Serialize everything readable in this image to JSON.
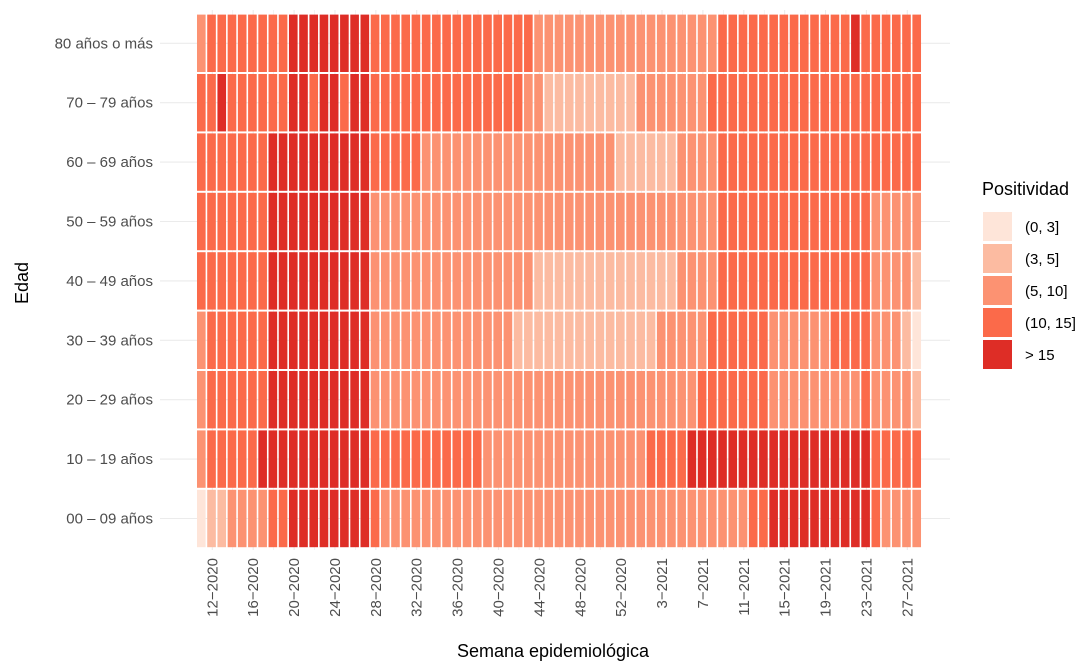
{
  "colors": {
    "bins": [
      "#fee5d9",
      "#fcbba1",
      "#fc9272",
      "#fb6a4a",
      "#de2d26"
    ],
    "grid": "#ebebeb",
    "text": "#4d4d4d",
    "title": "#000000"
  },
  "chart_data": {
    "type": "heatmap",
    "title": "",
    "xlabel": "Semana epidemiológica",
    "ylabel": "Edad",
    "legend": {
      "title": "Positividad",
      "position": "right",
      "items": [
        "(0, 3]",
        "(3, 5]",
        "(5, 10]",
        "(10, 15]",
        "> 15"
      ]
    },
    "grid": true,
    "x": [
      "11-2020",
      "12-2020",
      "13-2020",
      "14-2020",
      "15-2020",
      "16-2020",
      "17-2020",
      "18-2020",
      "19-2020",
      "20-2020",
      "21-2020",
      "22-2020",
      "23-2020",
      "24-2020",
      "25-2020",
      "26-2020",
      "27-2020",
      "28-2020",
      "29-2020",
      "30-2020",
      "31-2020",
      "32-2020",
      "33-2020",
      "34-2020",
      "35-2020",
      "36-2020",
      "37-2020",
      "38-2020",
      "39-2020",
      "40-2020",
      "41-2020",
      "42-2020",
      "43-2020",
      "44-2020",
      "45-2020",
      "46-2020",
      "47-2020",
      "48-2020",
      "49-2020",
      "50-2020",
      "51-2020",
      "52-2020",
      "53-2020",
      "1-2021",
      "2-2021",
      "3-2021",
      "4-2021",
      "5-2021",
      "6-2021",
      "7-2021",
      "8-2021",
      "9-2021",
      "10-2021",
      "11-2021",
      "12-2021",
      "13-2021",
      "14-2021",
      "15-2021",
      "16-2021",
      "17-2021",
      "18-2021",
      "19-2021",
      "20-2021",
      "21-2021",
      "22-2021",
      "23-2021",
      "24-2021",
      "25-2021",
      "26-2021",
      "27-2021",
      "28-2021"
    ],
    "x_tick_labels": [
      "12−2020",
      "16−2020",
      "20−2020",
      "24−2020",
      "28−2020",
      "32−2020",
      "36−2020",
      "40−2020",
      "44−2020",
      "48−2020",
      "52−2020",
      "3−2021",
      "7−2021",
      "11−2021",
      "15−2021",
      "19−2021",
      "23−2021",
      "27−2021"
    ],
    "y": [
      "00 – 09 años",
      "10 – 19 años",
      "20 – 29 años",
      "30 – 39 años",
      "40 – 49 años",
      "50 – 59 años",
      "60 – 69 años",
      "70 – 79 años",
      "80 años o más"
    ],
    "value_encoding": "bin index 0-4 = (0, 3], (3, 5], (5, 10], (10, 15], > 15",
    "z": [
      "011222233444444443222222222222222222222222222222222222334444444444322222",
      "233333444444444443333333333322222222222222223333444444444444444444333333",
      "233333344444444442222222222222222222222222222222233333332222222223222210",
      "233333344444444442222222222222211111111111111222223333332222223333222100",
      "333333344444444442222222222222222111111111111112222333333333333333222210",
      "333333344444444442222222222222222222222222222222222333333333333333222221",
      "333333344444444443333322222222222222222221111112222333333333333333333333",
      "334333333443443443333333333333332211111111122222223333333333333333333332",
      "233333333444444443333333333333333222222222222222222333333333333343333333"
    ]
  }
}
